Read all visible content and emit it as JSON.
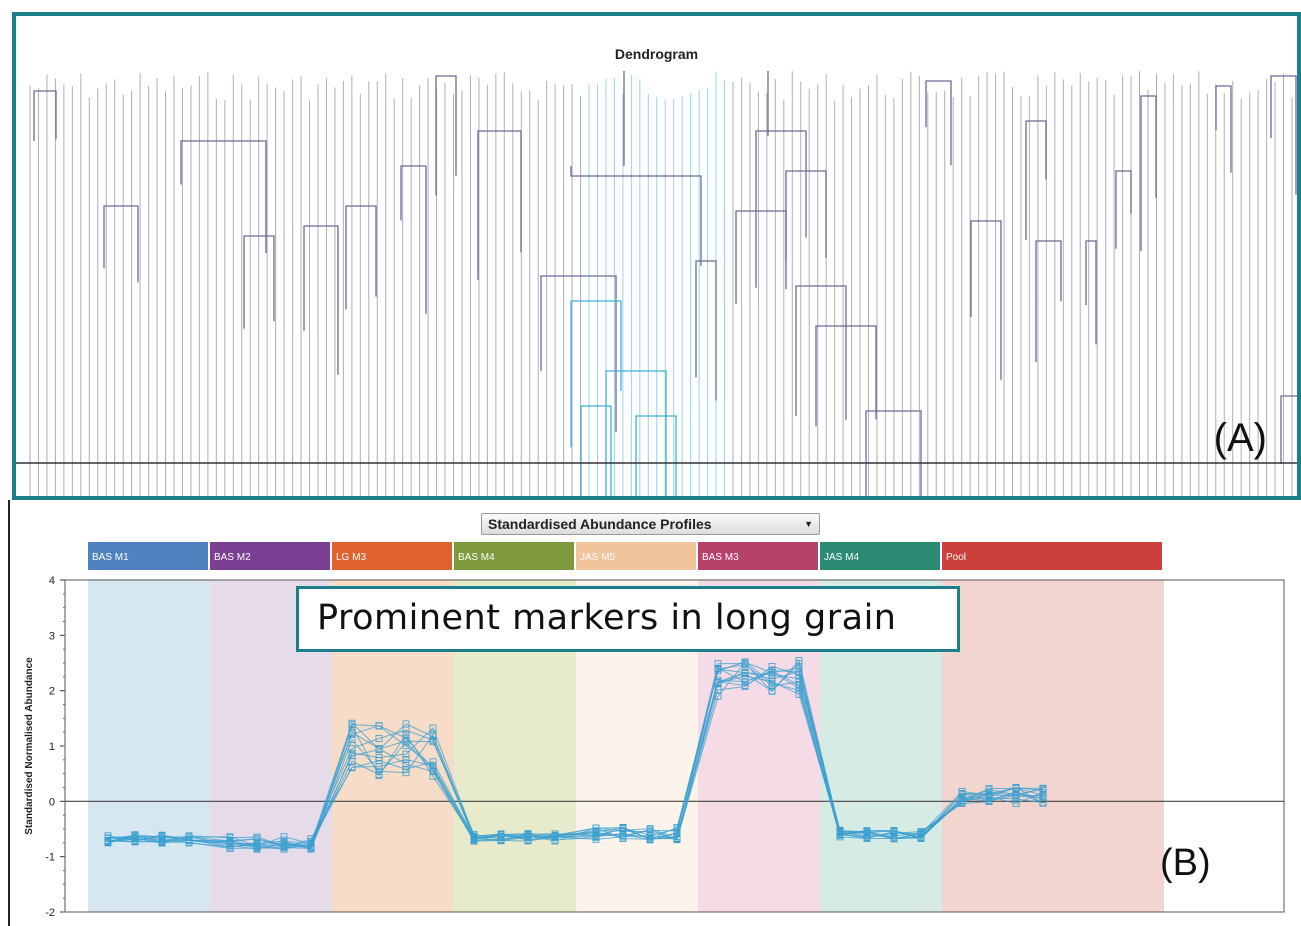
{
  "dendrogram": {
    "title": "Dendrogram",
    "panel_label": "(A)",
    "colors": {
      "frame": "#1b7f8c",
      "tree": "#6b6b95",
      "highlight": "#3fb0d8",
      "cutoff": "#333333"
    }
  },
  "dropdown": {
    "selected": "Standardised Abundance Profiles",
    "arrow_icon": "chevron-down-icon"
  },
  "callout": {
    "text": "Prominent markers in long grain"
  },
  "panel_b_label": "(B)",
  "chart_data": {
    "type": "line",
    "title": "",
    "xlabel": "",
    "ylabel": "Standardised Normalised Abundance",
    "ylim": [
      -2,
      4
    ],
    "yticks": [
      -2,
      -1,
      0,
      1,
      2,
      3,
      4
    ],
    "groups": [
      {
        "name": "BAS M1",
        "color": "#4f83c0",
        "bg": "#d6e7f1"
      },
      {
        "name": "BAS M2",
        "color": "#7a3f93",
        "bg": "#e6dbe9"
      },
      {
        "name": "LG M3",
        "color": "#e0622f",
        "bg": "#f7dcc8"
      },
      {
        "name": "BAS M4",
        "color": "#7f9a3a",
        "bg": "#e8ebcb"
      },
      {
        "name": "JAS M5",
        "color": "#f2c49b",
        "bg": "#fcf3ea"
      },
      {
        "name": "BAS M3",
        "color": "#b7416b",
        "bg": "#f4dbe5"
      },
      {
        "name": "JAS M4",
        "color": "#2b8a72",
        "bg": "#d6ebe4"
      },
      {
        "name": "Pool",
        "color": "#cc3f3a",
        "bg": "#f2d5cf"
      }
    ],
    "group_means": [
      -0.68,
      -0.75,
      0.95,
      -0.65,
      -0.58,
      2.2,
      -0.6,
      0.1
    ],
    "series_count": 12,
    "samples_per_group": 4,
    "line_color": "#3b9fcf",
    "baseline": 0
  }
}
